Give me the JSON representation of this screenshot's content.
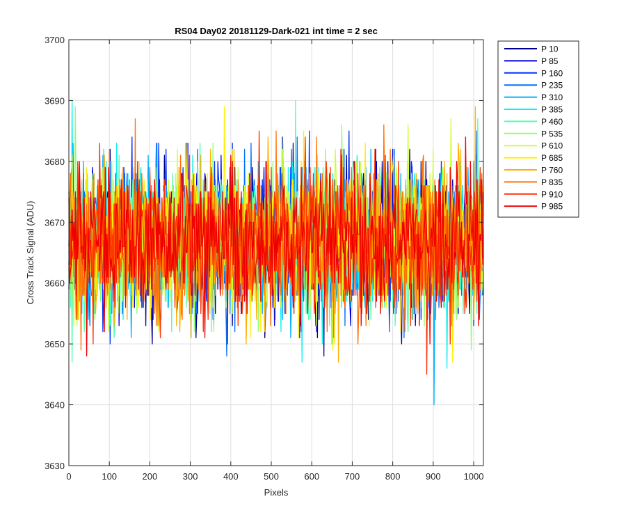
{
  "chart_data": {
    "type": "line",
    "title": "RS04 Day02 20181129-Dark-021 int time = 2 sec",
    "xlabel": "Pixels",
    "ylabel": "Cross Track Signal (ADU)",
    "xlim": [
      0,
      1024
    ],
    "ylim": [
      3630,
      3700
    ],
    "xticks": [
      0,
      100,
      200,
      300,
      400,
      500,
      600,
      700,
      800,
      900,
      1000
    ],
    "yticks": [
      3630,
      3640,
      3650,
      3660,
      3670,
      3680,
      3690,
      3700
    ],
    "grid": true,
    "legend_position": "outside-top-right",
    "signal_mean": 3667,
    "signal_spread": 6,
    "series": [
      {
        "name": "P 10",
        "color": "#00008f"
      },
      {
        "name": "P 85",
        "color": "#0000df"
      },
      {
        "name": "P 160",
        "color": "#0030ff"
      },
      {
        "name": "P 235",
        "color": "#0070ff"
      },
      {
        "name": "P 310",
        "color": "#00b0ff"
      },
      {
        "name": "P 385",
        "color": "#10f0ef"
      },
      {
        "name": "P 460",
        "color": "#50ffaf"
      },
      {
        "name": "P 535",
        "color": "#90ff6f"
      },
      {
        "name": "P 610",
        "color": "#cfff30"
      },
      {
        "name": "P 685",
        "color": "#ffef00"
      },
      {
        "name": "P 760",
        "color": "#ffaf00"
      },
      {
        "name": "P 835",
        "color": "#ff7000"
      },
      {
        "name": "P 910",
        "color": "#ff3000"
      },
      {
        "name": "P 985",
        "color": "#ef0000"
      }
    ]
  }
}
